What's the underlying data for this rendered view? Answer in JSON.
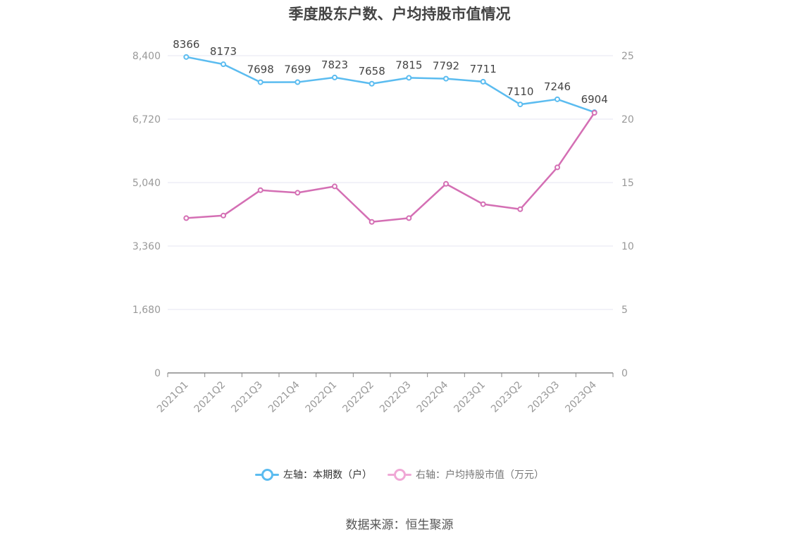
{
  "title": "季度股东户数、户均持股市值情况",
  "source": "数据来源：恒生聚源",
  "colors": {
    "left_series": "#5bbcf0",
    "right_series": "#d46fb4",
    "grid": "#e4e6f0",
    "axis": "#888888"
  },
  "chart_data": {
    "type": "line",
    "title": "季度股东户数、户均持股市值情况",
    "categories": [
      "2021Q1",
      "2021Q2",
      "2021Q3",
      "2021Q4",
      "2022Q1",
      "2022Q2",
      "2022Q3",
      "2022Q4",
      "2023Q1",
      "2023Q2",
      "2023Q3",
      "2023Q4"
    ],
    "y_left": {
      "ticks": [
        "0",
        "1,680",
        "3,360",
        "5,040",
        "6,720",
        "8,400"
      ],
      "range": [
        0,
        8400
      ]
    },
    "y_right": {
      "ticks": [
        "0",
        "5",
        "10",
        "15",
        "20",
        "25"
      ],
      "range": [
        0,
        25
      ]
    },
    "grid": true,
    "legend_position": "bottom",
    "series": [
      {
        "name": "左轴：本期数（户）",
        "axis": "left",
        "color": "#5bbcf0",
        "values": [
          8366,
          8173,
          7698,
          7699,
          7823,
          7658,
          7815,
          7792,
          7711,
          7110,
          7246,
          6904
        ],
        "labels": [
          "8366",
          "8173",
          "7698",
          "7699",
          "7823",
          "7658",
          "7815",
          "7792",
          "7711",
          "7110",
          "7246",
          "6904"
        ]
      },
      {
        "name": "右轴：户均持股市值（万元）",
        "axis": "right",
        "color": "#d46fb4",
        "values": [
          12.2,
          12.4,
          14.4,
          14.2,
          14.7,
          11.9,
          12.2,
          14.9,
          13.3,
          12.9,
          16.2,
          20.5
        ]
      }
    ]
  }
}
